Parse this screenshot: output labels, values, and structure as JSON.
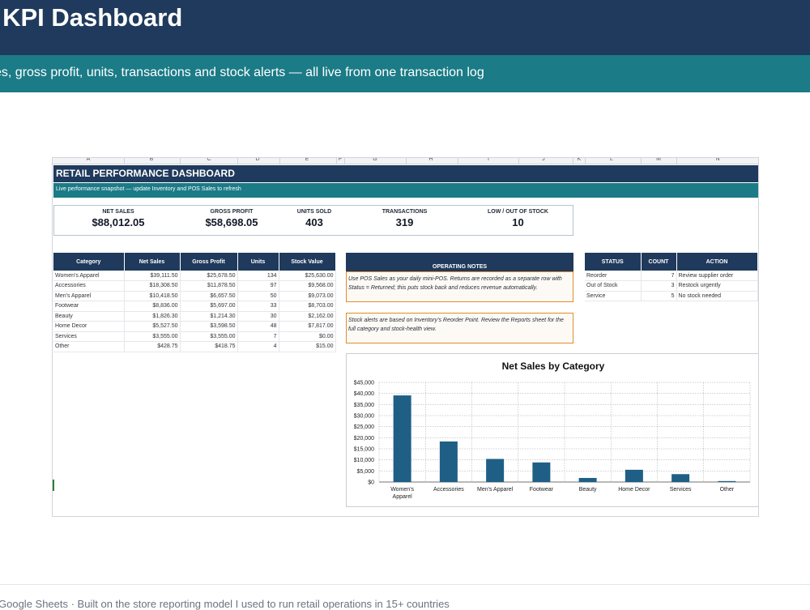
{
  "header": {
    "title": "ail KPI Dashboard",
    "subtitle": "es, gross profit, units, transactions and stock alerts — all live from one transaction log"
  },
  "footer": {
    "text": "Google Sheets  ·  Built on the store reporting model I used to run retail operations in 15+ countries"
  },
  "sheet": {
    "columns": [
      "A",
      "B",
      "C",
      "D",
      "E",
      "F",
      "G",
      "H",
      "I",
      "J",
      "K",
      "L",
      "M",
      "N"
    ],
    "title": "RETAIL PERFORMANCE DASHBOARD",
    "snapshot_note": "Live performance snapshot — update Inventory and POS Sales to refresh",
    "kpis": [
      {
        "label": "NET SALES",
        "value": "$88,012.05"
      },
      {
        "label": "GROSS PROFIT",
        "value": "$58,698.05"
      },
      {
        "label": "UNITS SOLD",
        "value": "403"
      },
      {
        "label": "TRANSACTIONS",
        "value": "319"
      },
      {
        "label": "LOW / OUT OF STOCK",
        "value": "10"
      }
    ],
    "category_table": {
      "headers": [
        "Category",
        "Net Sales",
        "Gross Profit",
        "Units",
        "Stock Value"
      ],
      "rows": [
        [
          "Women's Apparel",
          "$39,111.50",
          "$25,678.50",
          "134",
          "$25,630.00"
        ],
        [
          "Accessories",
          "$18,308.50",
          "$11,878.50",
          "97",
          "$9,568.00"
        ],
        [
          "Men's Apparel",
          "$10,418.50",
          "$6,657.50",
          "50",
          "$9,073.00"
        ],
        [
          "Footwear",
          "$8,836.00",
          "$5,697.00",
          "33",
          "$8,703.00"
        ],
        [
          "Beauty",
          "$1,826.30",
          "$1,214.30",
          "30",
          "$2,162.00"
        ],
        [
          "Home Decor",
          "$5,527.50",
          "$3,598.50",
          "48",
          "$7,817.00"
        ],
        [
          "Services",
          "$3,555.00",
          "$3,555.00",
          "7",
          "$0.00"
        ],
        [
          "Other",
          "$428.75",
          "$418.75",
          "4",
          "$15.00"
        ]
      ]
    },
    "operating_notes": {
      "title": "OPERATING NOTES",
      "note1": "Use POS Sales as your daily mini-POS. Returns are recorded as a separate row with Status = Returned; this puts stock back and reduces revenue automatically.",
      "note2": "Stock alerts are based on Inventory's Reorder Point. Review the Reports sheet for the full category and stock-health view."
    },
    "status_table": {
      "headers": [
        "STATUS",
        "COUNT",
        "ACTION"
      ],
      "rows": [
        [
          "Reorder",
          "7",
          "Review supplier order"
        ],
        [
          "Out of Stock",
          "3",
          "Restock urgently"
        ],
        [
          "Service",
          "5",
          "No stock needed"
        ]
      ]
    }
  },
  "chart_data": {
    "type": "bar",
    "title": "Net Sales by Category",
    "categories": [
      "Women's Apparel",
      "Accessories",
      "Men's Apparel",
      "Footwear",
      "Beauty",
      "Home Decor",
      "Services",
      "Other"
    ],
    "values": [
      39111.5,
      18308.5,
      10418.5,
      8836,
      1826.3,
      5527.5,
      3555,
      428.75
    ],
    "yticks": [
      "$0",
      "$5,000",
      "$10,000",
      "$15,000",
      "$20,000",
      "$25,000",
      "$30,000",
      "$35,000",
      "$40,000",
      "$45,000"
    ],
    "ylim": [
      0,
      45000
    ],
    "grid": true,
    "bar_color": "#1f5f86"
  }
}
